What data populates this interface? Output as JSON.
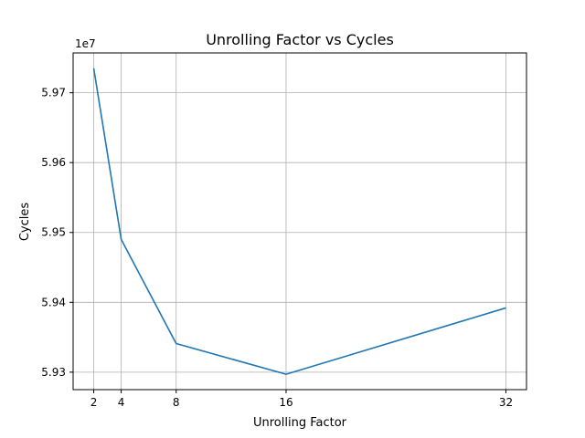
{
  "chart_data": {
    "type": "line",
    "title": "Unrolling Factor vs Cycles",
    "xlabel": "Unrolling Factor",
    "ylabel": "Cycles",
    "offset_label": "1e7",
    "x": [
      2,
      4,
      8,
      16,
      32
    ],
    "series": [
      {
        "values": [
          59735000,
          59490000,
          59341000,
          59297000,
          59392000
        ]
      }
    ],
    "xticks": [
      2,
      4,
      8,
      16,
      32
    ],
    "xtick_labels": [
      "2",
      "4",
      "8",
      "16",
      "32"
    ],
    "yticks": [
      59300000,
      59400000,
      59500000,
      59600000,
      59700000
    ],
    "ytick_labels": [
      "5.93",
      "5.94",
      "5.95",
      "5.96",
      "5.97"
    ],
    "xlim": [
      0.5,
      33.5
    ],
    "ylim": [
      59275000,
      59757000
    ],
    "grid": true,
    "line_color": "#1f77b4"
  }
}
